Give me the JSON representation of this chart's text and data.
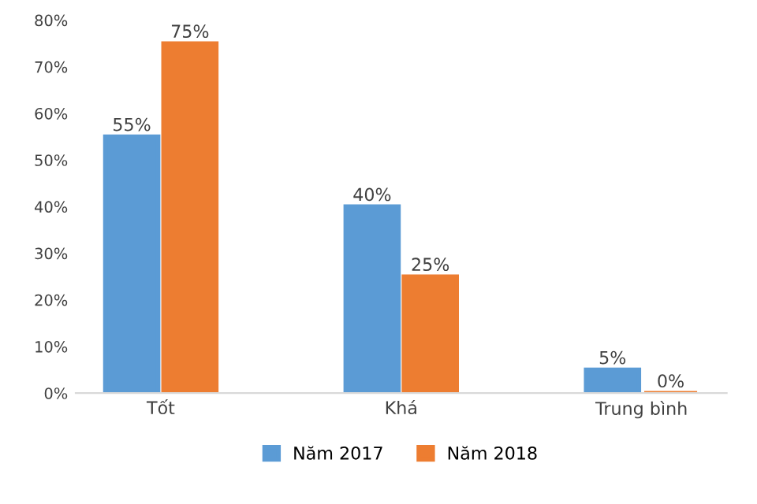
{
  "chart_data": {
    "type": "bar",
    "categories": [
      "Tốt",
      "Khá",
      "Trung bình"
    ],
    "series": [
      {
        "name": "Năm 2017",
        "color": "#5b9bd5",
        "values": [
          55,
          40,
          5
        ],
        "value_labels": [
          "55%",
          "40%",
          "5%"
        ]
      },
      {
        "name": "Năm 2018",
        "color": "#ed7d31",
        "values": [
          75,
          25,
          0
        ],
        "value_labels": [
          "75%",
          "25%",
          "0%"
        ]
      }
    ],
    "ylim": [
      0,
      80
    ],
    "yticks": [
      {
        "value": 0,
        "label": "0%"
      },
      {
        "value": 10,
        "label": "10%"
      },
      {
        "value": 20,
        "label": "20%"
      },
      {
        "value": 30,
        "label": "30%"
      },
      {
        "value": 40,
        "label": "40%"
      },
      {
        "value": 50,
        "label": "50%"
      },
      {
        "value": 60,
        "label": "60%"
      },
      {
        "value": 70,
        "label": "70%"
      },
      {
        "value": 80,
        "label": "80%"
      }
    ],
    "grid": false,
    "legend": "bottom"
  }
}
